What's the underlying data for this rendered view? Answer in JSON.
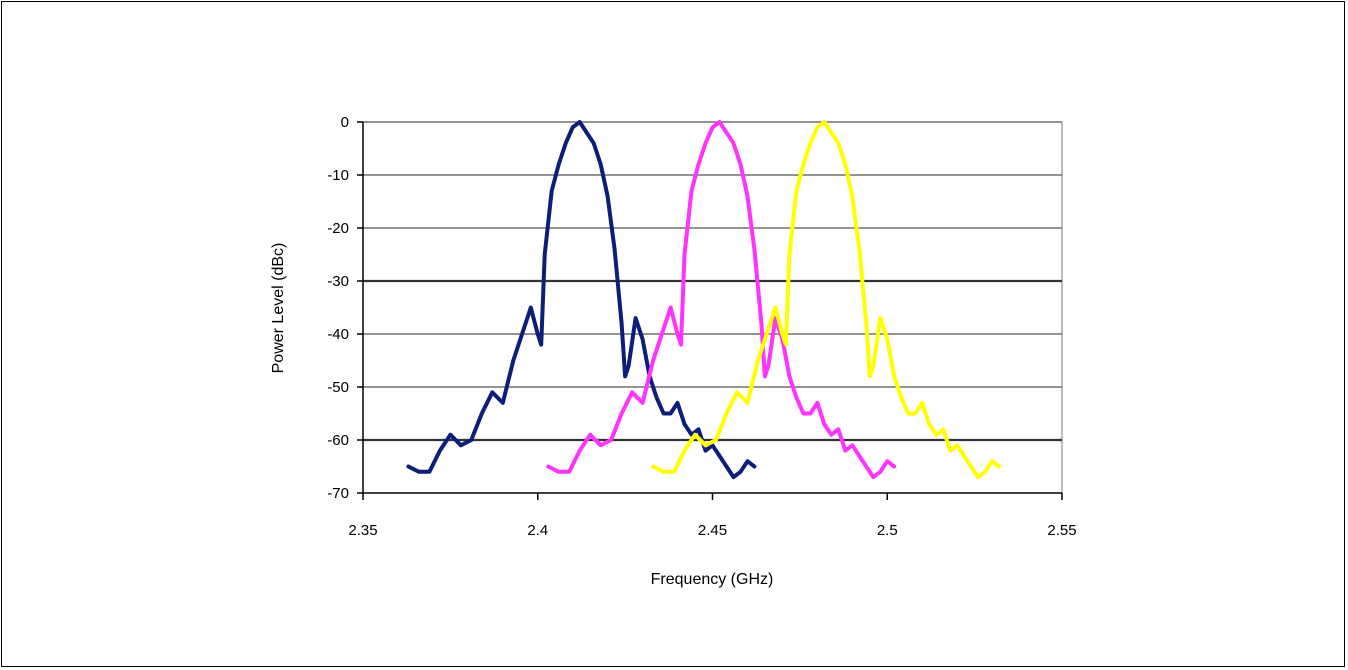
{
  "chart_data": {
    "type": "line",
    "title": "",
    "xlabel": "Frequency (GHz)",
    "ylabel": "Power Level (dBc)",
    "xlim": [
      2.35,
      2.55
    ],
    "ylim": [
      -70,
      0
    ],
    "x_ticks": [
      "2.35",
      "2.4",
      "2.45",
      "2.5",
      "2.55"
    ],
    "y_ticks": [
      "0",
      "-10",
      "-20",
      "-30",
      "-40",
      "-50",
      "-60",
      "-70"
    ],
    "grid": "horizontal",
    "legend": "none",
    "series": [
      {
        "color": "#0b1f7a",
        "x": [
          2.363,
          2.366,
          2.369,
          2.372,
          2.375,
          2.378,
          2.381,
          2.384,
          2.387,
          2.39,
          2.393,
          2.396,
          2.398,
          2.4,
          2.401,
          2.402,
          2.404,
          2.406,
          2.408,
          2.41,
          2.412,
          2.414,
          2.416,
          2.418,
          2.42,
          2.422,
          2.424,
          2.425,
          2.426,
          2.428,
          2.43,
          2.432,
          2.434,
          2.436,
          2.438,
          2.44,
          2.442,
          2.444,
          2.446,
          2.448,
          2.45,
          2.452,
          2.454,
          2.456,
          2.458,
          2.46,
          2.462
        ],
        "y": [
          -65,
          -66,
          -66,
          -62,
          -59,
          -61,
          -60,
          -55,
          -51,
          -53,
          -45,
          -39,
          -35,
          -40,
          -42,
          -25,
          -13,
          -8,
          -4,
          -1,
          0,
          -2,
          -4,
          -8,
          -14,
          -24,
          -38,
          -48,
          -46,
          -37,
          -41,
          -48,
          -52,
          -55,
          -55,
          -53,
          -57,
          -59,
          -58,
          -62,
          -61,
          -63,
          -65,
          -67,
          -66,
          -64,
          -65
        ]
      },
      {
        "color": "#ff33ff",
        "x": [
          2.403,
          2.406,
          2.409,
          2.412,
          2.415,
          2.418,
          2.421,
          2.424,
          2.427,
          2.43,
          2.433,
          2.436,
          2.438,
          2.44,
          2.441,
          2.442,
          2.444,
          2.446,
          2.448,
          2.45,
          2.452,
          2.454,
          2.456,
          2.458,
          2.46,
          2.462,
          2.464,
          2.465,
          2.466,
          2.468,
          2.47,
          2.472,
          2.474,
          2.476,
          2.478,
          2.48,
          2.482,
          2.484,
          2.486,
          2.488,
          2.49,
          2.492,
          2.494,
          2.496,
          2.498,
          2.5,
          2.502
        ],
        "y": [
          -65,
          -66,
          -66,
          -62,
          -59,
          -61,
          -60,
          -55,
          -51,
          -53,
          -45,
          -39,
          -35,
          -40,
          -42,
          -25,
          -13,
          -8,
          -4,
          -1,
          0,
          -2,
          -4,
          -8,
          -14,
          -24,
          -38,
          -48,
          -46,
          -37,
          -41,
          -48,
          -52,
          -55,
          -55,
          -53,
          -57,
          -59,
          -58,
          -62,
          -61,
          -63,
          -65,
          -67,
          -66,
          -64,
          -65
        ]
      },
      {
        "color": "#ffff00",
        "x": [
          2.433,
          2.436,
          2.439,
          2.442,
          2.445,
          2.448,
          2.451,
          2.454,
          2.457,
          2.46,
          2.463,
          2.466,
          2.468,
          2.47,
          2.471,
          2.472,
          2.474,
          2.476,
          2.478,
          2.48,
          2.482,
          2.484,
          2.486,
          2.488,
          2.49,
          2.492,
          2.494,
          2.495,
          2.496,
          2.498,
          2.5,
          2.502,
          2.504,
          2.506,
          2.508,
          2.51,
          2.512,
          2.514,
          2.516,
          2.518,
          2.52,
          2.522,
          2.524,
          2.526,
          2.528,
          2.53,
          2.532
        ],
        "y": [
          -65,
          -66,
          -66,
          -62,
          -59,
          -61,
          -60,
          -55,
          -51,
          -53,
          -45,
          -39,
          -35,
          -40,
          -42,
          -25,
          -13,
          -8,
          -4,
          -1,
          0,
          -2,
          -4,
          -8,
          -14,
          -24,
          -38,
          -48,
          -46,
          -37,
          -41,
          -48,
          -52,
          -55,
          -55,
          -53,
          -57,
          -59,
          -58,
          -62,
          -61,
          -63,
          -65,
          -67,
          -66,
          -64,
          -65
        ]
      }
    ]
  }
}
